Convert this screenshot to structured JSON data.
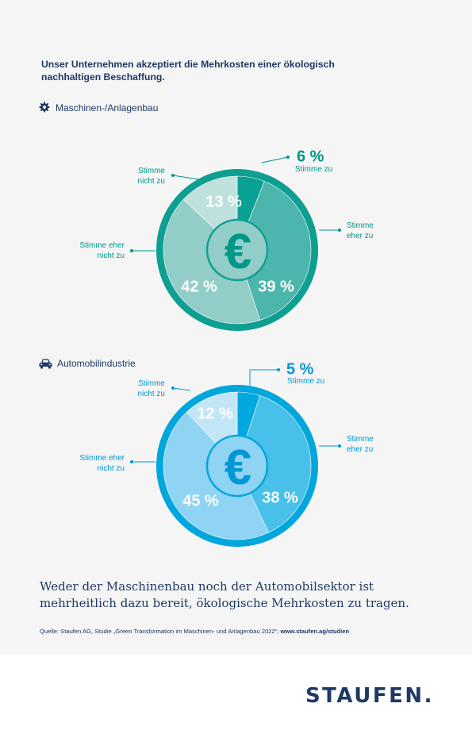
{
  "headline": "Unser Unternehmen akzeptiert die Mehrkosten einer ökologisch nachhaltigen Beschaffung.",
  "sections": [
    {
      "label": "Maschinen-/Anlagenbau",
      "icon": "gear-icon"
    },
    {
      "label": "Automobilindustrie",
      "icon": "car-icon"
    }
  ],
  "chart_data": [
    {
      "type": "pie",
      "title": "Maschinen-/Anlagenbau",
      "categories": [
        "Stimme zu",
        "Stimme eher zu",
        "Stimme eher nicht zu",
        "Stimme nicht zu"
      ],
      "values": [
        6,
        39,
        42,
        13
      ],
      "value_labels": [
        "6 %",
        "39 %",
        "42 %",
        "13 %"
      ],
      "center_symbol": "€",
      "colors": {
        "ring": "#0e9f92",
        "slices": [
          "#0aa195",
          "#4db6ac",
          "#92cdc7",
          "#bfe1de"
        ],
        "accent": "#009688"
      }
    },
    {
      "type": "pie",
      "title": "Automobilindustrie",
      "categories": [
        "Stimme zu",
        "Stimme eher zu",
        "Stimme eher nicht zu",
        "Stimme nicht zu"
      ],
      "values": [
        5,
        38,
        45,
        12
      ],
      "value_labels": [
        "5 %",
        "38 %",
        "45 %",
        "12 %"
      ],
      "center_symbol": "€",
      "colors": {
        "ring": "#00a6dc",
        "slices": [
          "#00a8e0",
          "#48c0ea",
          "#8fd4f2",
          "#c3e6f7"
        ],
        "accent": "#0098d4"
      }
    }
  ],
  "category_labels": {
    "zu": [
      "Stimme zu"
    ],
    "eher_zu": [
      "Stimme",
      "eher zu"
    ],
    "eher_nicht": [
      "Stimme eher",
      "nicht zu"
    ],
    "nicht": [
      "Stimme",
      "nicht zu"
    ]
  },
  "conclusion": "Weder der Maschinenbau noch der Automobilsektor ist mehrheitlich dazu bereit, ökologische Mehrkosten zu tragen.",
  "source": {
    "text": "Quelle: Staufen AG, Studie „Green Transformation im Maschinen- und Anlagenbau 2022“; ",
    "link": "www.staufen.ag/studien"
  },
  "brand": "STAUFEN."
}
